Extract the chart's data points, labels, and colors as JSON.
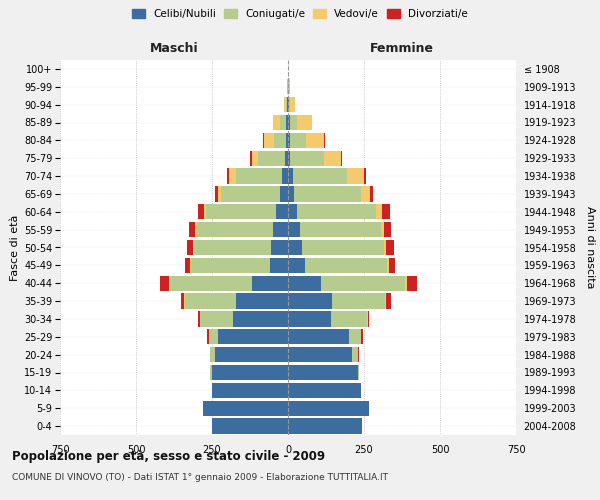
{
  "age_groups": [
    "0-4",
    "5-9",
    "10-14",
    "15-19",
    "20-24",
    "25-29",
    "30-34",
    "35-39",
    "40-44",
    "45-49",
    "50-54",
    "55-59",
    "60-64",
    "65-69",
    "70-74",
    "75-79",
    "80-84",
    "85-89",
    "90-94",
    "95-99",
    "100+"
  ],
  "birth_years": [
    "2004-2008",
    "1999-2003",
    "1994-1998",
    "1989-1993",
    "1984-1988",
    "1979-1983",
    "1974-1978",
    "1969-1973",
    "1964-1968",
    "1959-1963",
    "1954-1958",
    "1949-1953",
    "1944-1948",
    "1939-1943",
    "1934-1938",
    "1929-1933",
    "1924-1928",
    "1919-1923",
    "1914-1918",
    "1909-1913",
    "≤ 1908"
  ],
  "colors": {
    "celibe": "#3d6d9e",
    "coniugato": "#b5cc8e",
    "vedovo": "#f5c96e",
    "divorziato": "#cc2222"
  },
  "maschi": {
    "celibe": [
      250,
      280,
      250,
      250,
      240,
      230,
      180,
      170,
      120,
      60,
      55,
      50,
      40,
      25,
      20,
      10,
      5,
      5,
      2,
      1,
      0
    ],
    "coniugato": [
      0,
      0,
      0,
      5,
      15,
      30,
      110,
      170,
      270,
      260,
      255,
      250,
      230,
      195,
      150,
      90,
      40,
      20,
      5,
      1,
      0
    ],
    "vedovo": [
      0,
      0,
      0,
      0,
      1,
      1,
      1,
      1,
      2,
      3,
      3,
      5,
      5,
      10,
      25,
      20,
      35,
      25,
      5,
      2,
      0
    ],
    "divorziato": [
      0,
      0,
      0,
      0,
      2,
      5,
      5,
      10,
      30,
      15,
      20,
      20,
      20,
      10,
      5,
      5,
      2,
      0,
      0,
      0,
      0
    ]
  },
  "femmine": {
    "nubile": [
      245,
      265,
      240,
      230,
      210,
      200,
      140,
      145,
      110,
      55,
      45,
      40,
      30,
      20,
      15,
      8,
      5,
      5,
      2,
      1,
      0
    ],
    "coniugata": [
      0,
      0,
      0,
      5,
      20,
      40,
      120,
      175,
      275,
      270,
      270,
      265,
      260,
      220,
      180,
      110,
      55,
      25,
      5,
      1,
      0
    ],
    "vedova": [
      0,
      0,
      0,
      0,
      1,
      1,
      2,
      3,
      5,
      8,
      8,
      10,
      20,
      30,
      55,
      55,
      60,
      50,
      15,
      3,
      0
    ],
    "divorziata": [
      0,
      0,
      0,
      0,
      2,
      5,
      5,
      15,
      35,
      20,
      25,
      25,
      25,
      10,
      5,
      3,
      2,
      0,
      0,
      0,
      0
    ]
  },
  "xlim": 750,
  "title": "Popolazione per età, sesso e stato civile - 2009",
  "subtitle": "COMUNE DI VINOVO (TO) - Dati ISTAT 1° gennaio 2009 - Elaborazione TUTTITALIA.IT",
  "ylabel_left": "Fasce di età",
  "ylabel_right": "Anni di nascita",
  "xlabel_left": "Maschi",
  "xlabel_right": "Femmine",
  "legend_labels": [
    "Celibi/Nubili",
    "Coniugati/e",
    "Vedovi/e",
    "Divorziati/e"
  ],
  "bg_color": "#f0f0f0",
  "plot_bg_color": "#ffffff"
}
